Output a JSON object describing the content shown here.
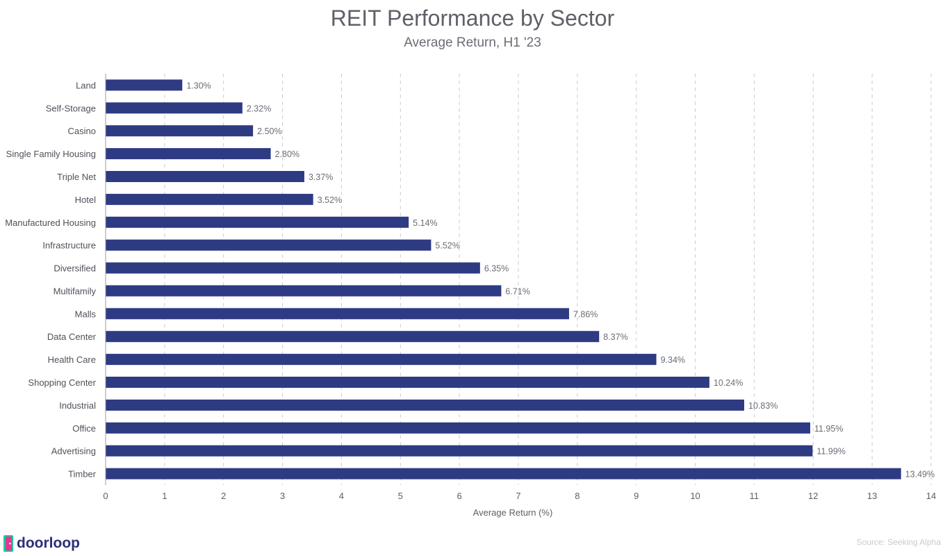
{
  "chart_data": {
    "type": "bar",
    "orientation": "horizontal",
    "title": "REIT Performance by Sector",
    "subtitle": "Average Return, H1 '23",
    "xlabel": "Average Return (%)",
    "ylabel": "",
    "xlim": [
      0,
      14
    ],
    "xticks": [
      0,
      1,
      2,
      3,
      4,
      5,
      6,
      7,
      8,
      9,
      10,
      11,
      12,
      13,
      14
    ],
    "grid": "vertical-dashed",
    "categories": [
      "Land",
      "Self-Storage",
      "Casino",
      "Single Family Housing",
      "Triple Net",
      "Hotel",
      "Manufactured Housing",
      "Infrastructure",
      "Diversified",
      "Multifamily",
      "Malls",
      "Data Center",
      "Health Care",
      "Shopping Center",
      "Industrial",
      "Office",
      "Advertising",
      "Timber"
    ],
    "values": [
      1.3,
      2.32,
      2.5,
      2.8,
      3.37,
      3.52,
      5.14,
      5.52,
      6.35,
      6.71,
      7.86,
      8.37,
      9.34,
      10.24,
      10.83,
      11.95,
      11.99,
      13.49
    ],
    "data_labels": [
      "1.30%",
      "2.32%",
      "2.50%",
      "2.80%",
      "3.37%",
      "3.52%",
      "5.14%",
      "5.52%",
      "6.35%",
      "6.71%",
      "7.86%",
      "8.37%",
      "9.34%",
      "10.24%",
      "10.83%",
      "11.95%",
      "11.99%",
      "13.49%"
    ],
    "bar_color": "#2e3a82"
  },
  "brand": {
    "name": "doorloop",
    "icon": "door-icon"
  },
  "source": "Source: Seeking Alpha"
}
